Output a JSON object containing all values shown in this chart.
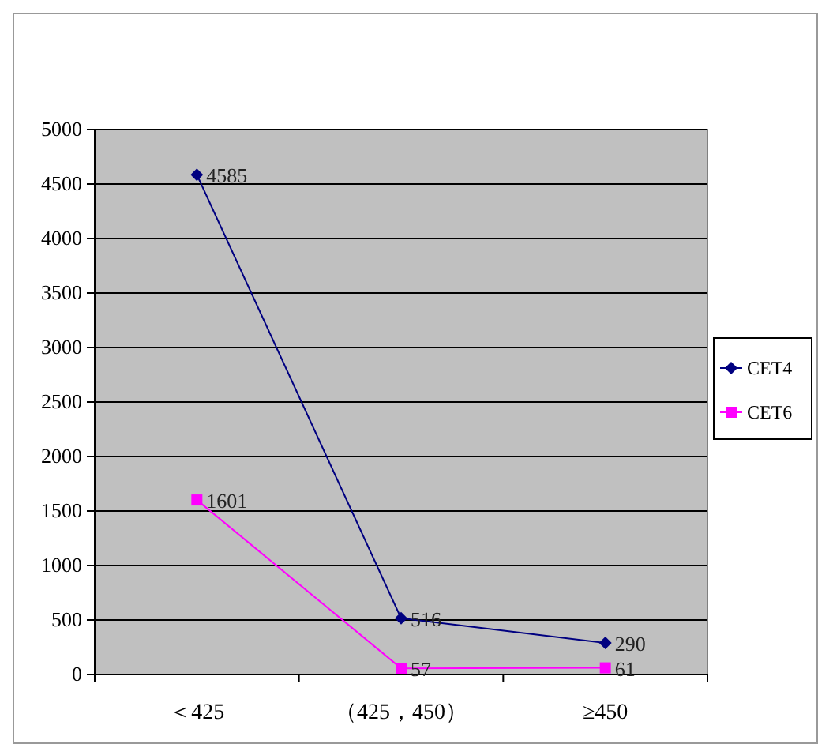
{
  "chart_data": {
    "type": "line",
    "categories": [
      "＜425",
      "（425，450）",
      "≥450"
    ],
    "series": [
      {
        "name": "CET4",
        "color": "#000080",
        "marker": "diamond",
        "values": [
          4585,
          516,
          290
        ]
      },
      {
        "name": "CET6",
        "color": "#ff00ff",
        "marker": "square",
        "values": [
          1601,
          57,
          61
        ]
      }
    ],
    "ylim": [
      0,
      5000
    ],
    "yticks": [
      0,
      500,
      1000,
      1500,
      2000,
      2500,
      3000,
      3500,
      4000,
      4500,
      5000
    ],
    "grid": "y",
    "legend": "right",
    "data_labels": true
  }
}
